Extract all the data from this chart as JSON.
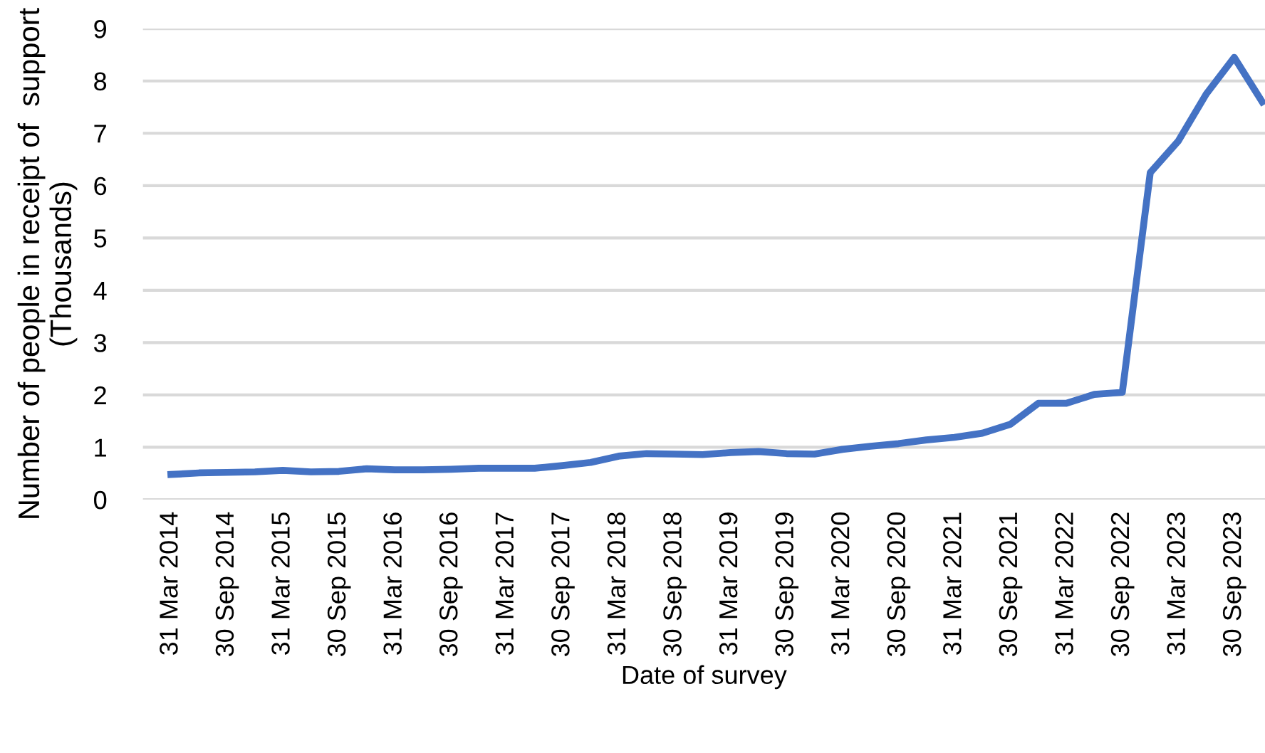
{
  "chart_data": {
    "type": "line",
    "xlabel": "Date of survey",
    "ylabel": "Number of people in receipt of  support\n(Thousands)",
    "categories": [
      "31 Mar 2014",
      null,
      "30 Sep 2014",
      null,
      "31 Mar 2015",
      null,
      "30 Sep 2015",
      null,
      "31 Mar 2016",
      null,
      "30 Sep 2016",
      null,
      "31 Mar 2017",
      null,
      "30 Sep 2017",
      null,
      "31 Mar 2018",
      null,
      "30 Sep 2018",
      null,
      "31 Mar 2019",
      null,
      "30 Sep 2019",
      null,
      "31 Mar 2020",
      null,
      "30 Sep 2020",
      null,
      "31 Mar 2021",
      null,
      "30 Sep 2021",
      null,
      "31 Mar 2022",
      null,
      "30 Sep 2022",
      null,
      "31 Mar 2023",
      null,
      "30 Sep 2023",
      null
    ],
    "series": [
      {
        "color": "#4472c4",
        "values": [
          0.48,
          0.51,
          0.52,
          0.53,
          0.56,
          0.53,
          0.54,
          0.59,
          0.57,
          0.57,
          0.58,
          0.6,
          0.6,
          0.6,
          0.65,
          0.71,
          0.83,
          0.88,
          0.87,
          0.86,
          0.9,
          0.92,
          0.88,
          0.87,
          0.96,
          1.02,
          1.07,
          1.14,
          1.19,
          1.27,
          1.44,
          1.84,
          1.84,
          2.01,
          2.05,
          6.25,
          6.85,
          7.75,
          8.45,
          7.6
        ]
      }
    ],
    "ylim": [
      0,
      9
    ],
    "yticks": [
      0,
      1,
      2,
      3,
      4,
      5,
      6,
      7,
      8,
      9
    ],
    "grid": "y",
    "marker": "none",
    "line_style": "solid"
  }
}
